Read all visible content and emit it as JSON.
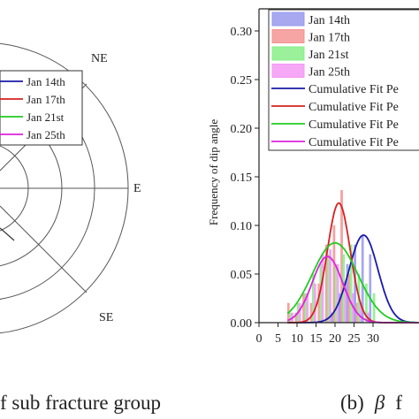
{
  "chart_data": [
    {
      "type": "polar",
      "compass_labels": [
        "NE",
        "E",
        "SE"
      ],
      "legend": [
        {
          "name": "Jan 14th",
          "color": "#1a1aaa"
        },
        {
          "name": "Jan 17th",
          "color": "#d62020"
        },
        {
          "name": "Jan 21st",
          "color": "#22cc22"
        },
        {
          "name": "Jan 25th",
          "color": "#dd22dd"
        }
      ],
      "caption": "f sub fracture group"
    },
    {
      "type": "bar",
      "ylabel": "Frequency of dip angle",
      "xlim": [
        0,
        35
      ],
      "ylim": [
        0,
        0.32
      ],
      "xticks": [
        0,
        5,
        10,
        15,
        20,
        25,
        30
      ],
      "yticks": [
        0.0,
        0.05,
        0.1,
        0.15,
        0.2,
        0.25,
        0.3
      ],
      "bin_width": 2,
      "x": [
        8,
        10,
        12,
        14,
        16,
        18,
        20,
        22,
        24,
        26,
        28,
        30
      ],
      "series": [
        {
          "name": "Jan 14th",
          "color": "#9999ee",
          "values": [
            0.0,
            0.0,
            0.0,
            0.0,
            0.0,
            0.0,
            0.01,
            0.03,
            0.06,
            0.08,
            0.09,
            0.07
          ]
        },
        {
          "name": "Jan 17th",
          "color": "#f49494",
          "values": [
            0.02,
            0.01,
            0.03,
            0.02,
            0.04,
            0.08,
            0.1,
            0.136,
            0.05,
            0.02,
            0.0,
            0.0
          ]
        },
        {
          "name": "Jan 21st",
          "color": "#88ee88",
          "values": [
            0.01,
            0.02,
            0.03,
            0.05,
            0.06,
            0.07,
            0.06,
            0.07,
            0.08,
            0.05,
            0.04,
            0.03
          ]
        },
        {
          "name": "Jan 25th",
          "color": "#f499f4",
          "values": [
            0.01,
            0.02,
            0.03,
            0.04,
            0.07,
            0.075,
            0.06,
            0.04,
            0.03,
            0.02,
            0.01,
            0.0
          ]
        }
      ],
      "fits": [
        {
          "name": "Cumulative Fit Pe",
          "color": "#1a1aaa",
          "mu": 27.5,
          "sigma": 3.8,
          "peak": 0.09
        },
        {
          "name": "Cumulative Fit Pe",
          "color": "#d62020",
          "mu": 21.0,
          "sigma": 3.0,
          "peak": 0.123
        },
        {
          "name": "Cumulative Fit Pe",
          "color": "#22cc22",
          "mu": 20.0,
          "sigma": 6.0,
          "peak": 0.082
        },
        {
          "name": "Cumulative Fit Pe",
          "color": "#dd22dd",
          "mu": 18.0,
          "sigma": 4.0,
          "peak": 0.068
        }
      ],
      "caption_prefix": "(b)",
      "caption_symbol": "β",
      "caption_suffix": "f"
    }
  ]
}
